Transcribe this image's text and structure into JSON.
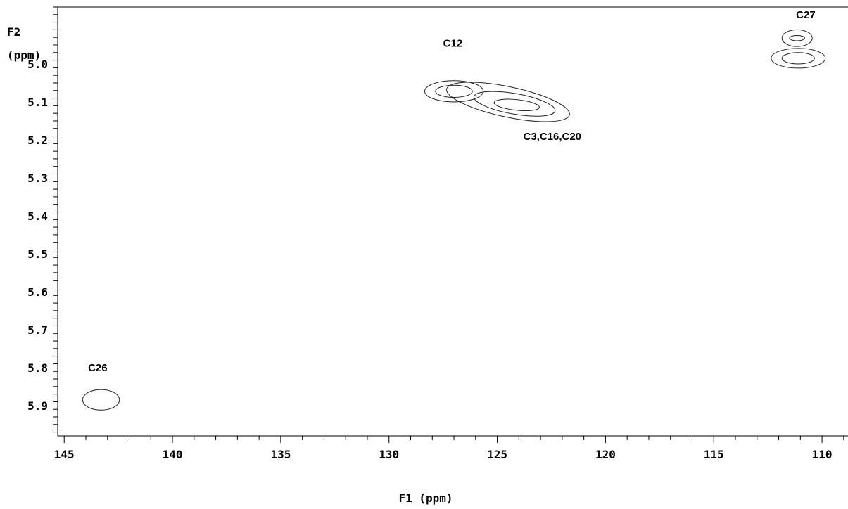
{
  "chart_data": {
    "type": "contour",
    "title": "",
    "xlabel": "F1 (ppm)",
    "ylabel_line1": "F2",
    "ylabel_line2": "(ppm)",
    "xlim": [
      145.3,
      108.8
    ],
    "ylim": [
      4.85,
      5.98
    ],
    "x_ticks": [
      145,
      140,
      135,
      130,
      125,
      120,
      115,
      110
    ],
    "y_ticks": [
      5.0,
      5.1,
      5.2,
      5.3,
      5.4,
      5.5,
      5.6,
      5.7,
      5.8,
      5.9
    ],
    "x_tick_labels": [
      "145",
      "140",
      "135",
      "130",
      "125",
      "120",
      "115",
      "110"
    ],
    "y_tick_labels": [
      "5.0",
      "5.1",
      "5.2",
      "5.3",
      "5.4",
      "5.5",
      "5.6",
      "5.7",
      "5.8",
      "5.9"
    ],
    "grid": false,
    "peaks": [
      {
        "label": "C26",
        "label_at": [
          143.9,
          5.81
        ],
        "contours": [
          {
            "cx": 143.3,
            "cy": 5.885,
            "rx": 0.85,
            "ry": 0.027
          }
        ]
      },
      {
        "label": "C12",
        "label_at": [
          127.5,
          4.955
        ],
        "contours": [
          {
            "cx": 127.0,
            "cy": 5.072,
            "rx": 1.35,
            "ry": 0.028
          },
          {
            "cx": 127.0,
            "cy": 5.072,
            "rx": 0.85,
            "ry": 0.016
          }
        ]
      },
      {
        "label": "C3,C16,C20",
        "label_at": [
          123.8,
          5.2
        ],
        "contours": [
          {
            "cx": 124.5,
            "cy": 5.1,
            "rx": 2.9,
            "ry": 0.04,
            "tilt": 0.012
          },
          {
            "cx": 124.2,
            "cy": 5.105,
            "rx": 1.9,
            "ry": 0.027,
            "tilt": 0.01
          },
          {
            "cx": 124.1,
            "cy": 5.108,
            "rx": 1.05,
            "ry": 0.014,
            "tilt": 0.006
          }
        ]
      },
      {
        "label": "C27",
        "label_at": [
          111.2,
          4.88
        ],
        "contours": [
          {
            "cx": 111.1,
            "cy": 4.985,
            "rx": 1.25,
            "ry": 0.026
          },
          {
            "cx": 111.1,
            "cy": 4.985,
            "rx": 0.75,
            "ry": 0.015
          },
          {
            "cx": 111.15,
            "cy": 4.932,
            "rx": 0.7,
            "ry": 0.022
          },
          {
            "cx": 111.15,
            "cy": 4.932,
            "rx": 0.35,
            "ry": 0.007
          }
        ]
      }
    ]
  }
}
